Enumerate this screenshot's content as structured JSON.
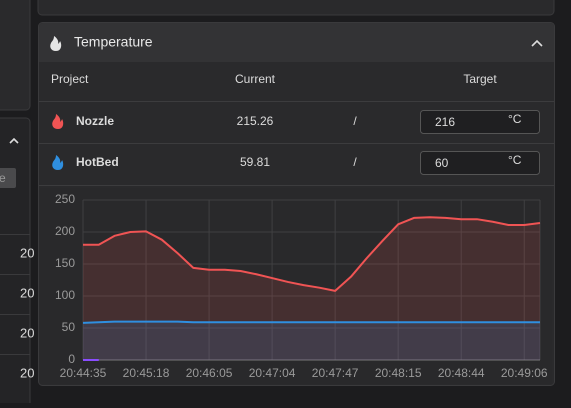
{
  "left_panel": {
    "input": "e",
    "rows": [
      "20",
      "20",
      "20",
      "20"
    ]
  },
  "temperature_panel": {
    "title": "Temperature",
    "columns": [
      "Project",
      "Current",
      "Target"
    ],
    "rows": [
      {
        "name": "Nozzle",
        "current": "215.26",
        "separator": "/",
        "target": "216",
        "unit": "°C"
      },
      {
        "name": "HotBed",
        "current": "59.81",
        "separator": "/",
        "target": "60",
        "unit": "°C"
      }
    ]
  },
  "chart_data": {
    "type": "line",
    "categories": [
      "20:44:35",
      null,
      null,
      null,
      "20:45:18",
      null,
      null,
      null,
      "20:46:05",
      null,
      null,
      null,
      "20:47:04",
      null,
      null,
      null,
      "20:47:47",
      null,
      null,
      null,
      "20:48:15",
      null,
      null,
      null,
      "20:48:44",
      null,
      null,
      null,
      "20:49:06",
      null
    ],
    "series": [
      {
        "name": "Nozzle",
        "color": "#f05454",
        "values": [
          180,
          180,
          194,
          200,
          201,
          188,
          167,
          144,
          141,
          141,
          139,
          134,
          128,
          122,
          117,
          113,
          108,
          130,
          159,
          186,
          212,
          222,
          223,
          222,
          220,
          220,
          216,
          211,
          211,
          214
        ]
      },
      {
        "name": "HotBed",
        "color": "#2f8fe0",
        "values": [
          58,
          59,
          60,
          60,
          60,
          60,
          60,
          59,
          59,
          59,
          59,
          59,
          59,
          59,
          59,
          59,
          59,
          59,
          59,
          59,
          59,
          59,
          59,
          59,
          59,
          59,
          59,
          59,
          59,
          59
        ]
      },
      {
        "color": "#8a4dff",
        "values": [
          0,
          0,
          null,
          null,
          null,
          null,
          null,
          null,
          null,
          null,
          null,
          null,
          null,
          null,
          null,
          null,
          null,
          null,
          null,
          null,
          null,
          null,
          null,
          null,
          null,
          null,
          null,
          null,
          null,
          null
        ]
      }
    ],
    "ylim": [
      0,
      250
    ],
    "yticks": [
      0,
      50,
      100,
      150,
      200,
      250
    ],
    "grid": true
  }
}
